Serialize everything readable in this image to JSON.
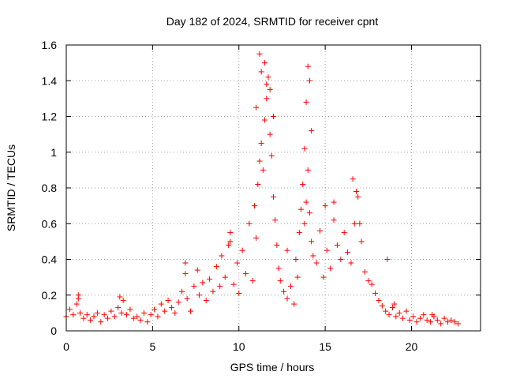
{
  "chart_data": {
    "type": "scatter",
    "title": "Day 182 of 2024, SRMTID for receiver cpnt",
    "xlabel": "GPS time / hours",
    "ylabel": "SRMTID / TECUs",
    "xlim": [
      0,
      24
    ],
    "ylim": [
      0,
      1.6
    ],
    "xticks": [
      0,
      5,
      10,
      15,
      20
    ],
    "xtick_labels": [
      "0",
      "5",
      "10",
      "15",
      "20"
    ],
    "yticks": [
      0,
      0.2,
      0.4,
      0.6,
      0.8,
      1.0,
      1.2,
      1.4,
      1.6
    ],
    "ytick_labels": [
      "0",
      "0.2",
      "0.4",
      "0.6",
      "0.8",
      "1",
      "1.2",
      "1.4",
      "1.6"
    ],
    "grid": true,
    "marker": "+",
    "color": "#ff0000",
    "series": [
      {
        "name": "SRMTID",
        "x": [
          0.0,
          0.2,
          0.4,
          0.6,
          0.7,
          0.8,
          1.0,
          1.2,
          1.4,
          1.6,
          1.8,
          2.0,
          2.2,
          2.4,
          2.6,
          2.8,
          3.0,
          3.2,
          3.3,
          3.5,
          3.7,
          3.9,
          4.1,
          4.3,
          4.5,
          4.7,
          4.9,
          5.1,
          5.3,
          5.5,
          5.7,
          5.9,
          6.1,
          6.3,
          6.5,
          6.7,
          6.9,
          7.0,
          7.2,
          7.4,
          7.6,
          7.7,
          7.9,
          8.1,
          8.3,
          8.5,
          8.7,
          8.9,
          9.0,
          9.2,
          9.4,
          9.5,
          9.7,
          9.9,
          10.0,
          10.2,
          10.4,
          10.6,
          10.8,
          10.9,
          11.0,
          11.1,
          11.2,
          11.3,
          11.4,
          11.5,
          11.6,
          11.7,
          11.8,
          11.9,
          12.0,
          12.1,
          12.2,
          12.3,
          12.4,
          12.6,
          12.8,
          13.0,
          13.2,
          13.4,
          13.5,
          13.6,
          13.7,
          13.8,
          13.9,
          14.0,
          14.1,
          14.2,
          14.3,
          14.5,
          14.7,
          14.9,
          15.1,
          15.3,
          15.5,
          15.7,
          15.9,
          16.1,
          16.3,
          16.5,
          16.7,
          16.9,
          17.1,
          17.3,
          17.5,
          17.7,
          17.9,
          18.1,
          18.3,
          18.5,
          18.7,
          18.9,
          19.1,
          19.3,
          19.5,
          19.7,
          19.9,
          20.1,
          20.3,
          20.5,
          20.7,
          20.9,
          21.1,
          21.3,
          21.5,
          21.7,
          21.9,
          22.1,
          22.3,
          22.5,
          22.7,
          11.2,
          11.5,
          11.8,
          12.0,
          11.0,
          11.3,
          11.6,
          14.0,
          14.1,
          13.9,
          14.2,
          13.8,
          16.6,
          16.8,
          15.5,
          18.6,
          3.1,
          0.7,
          6.9,
          9.5,
          12.8,
          13.3,
          19.0,
          21.2,
          17.0,
          15.0
        ],
        "y": [
          0.08,
          0.12,
          0.09,
          0.15,
          0.18,
          0.1,
          0.07,
          0.09,
          0.06,
          0.08,
          0.1,
          0.05,
          0.09,
          0.07,
          0.11,
          0.08,
          0.13,
          0.1,
          0.17,
          0.09,
          0.12,
          0.07,
          0.08,
          0.06,
          0.1,
          0.05,
          0.09,
          0.12,
          0.08,
          0.15,
          0.11,
          0.17,
          0.13,
          0.1,
          0.16,
          0.22,
          0.32,
          0.18,
          0.11,
          0.25,
          0.34,
          0.2,
          0.27,
          0.17,
          0.29,
          0.22,
          0.36,
          0.25,
          0.42,
          0.3,
          0.48,
          0.55,
          0.26,
          0.38,
          0.21,
          0.45,
          0.32,
          0.6,
          0.28,
          0.7,
          0.52,
          0.82,
          0.95,
          1.05,
          0.9,
          1.18,
          1.3,
          1.42,
          1.1,
          0.98,
          0.75,
          0.62,
          0.48,
          0.35,
          0.28,
          0.22,
          0.18,
          0.25,
          0.15,
          0.3,
          0.55,
          0.68,
          0.82,
          0.6,
          0.72,
          0.9,
          0.66,
          0.5,
          0.42,
          0.38,
          0.56,
          0.3,
          0.45,
          0.35,
          0.62,
          0.48,
          0.4,
          0.55,
          0.44,
          0.38,
          0.6,
          0.75,
          0.5,
          0.33,
          0.28,
          0.26,
          0.21,
          0.17,
          0.14,
          0.11,
          0.09,
          0.13,
          0.08,
          0.1,
          0.07,
          0.11,
          0.06,
          0.08,
          0.05,
          0.07,
          0.09,
          0.06,
          0.05,
          0.08,
          0.06,
          0.04,
          0.07,
          0.05,
          0.06,
          0.05,
          0.04,
          1.55,
          1.5,
          1.35,
          1.2,
          1.25,
          1.45,
          1.38,
          1.48,
          1.4,
          1.28,
          1.12,
          1.02,
          0.85,
          0.78,
          0.72,
          0.4,
          0.19,
          0.2,
          0.38,
          0.5,
          0.45,
          0.4,
          0.15,
          0.09,
          0.6,
          0.7
        ]
      }
    ]
  }
}
